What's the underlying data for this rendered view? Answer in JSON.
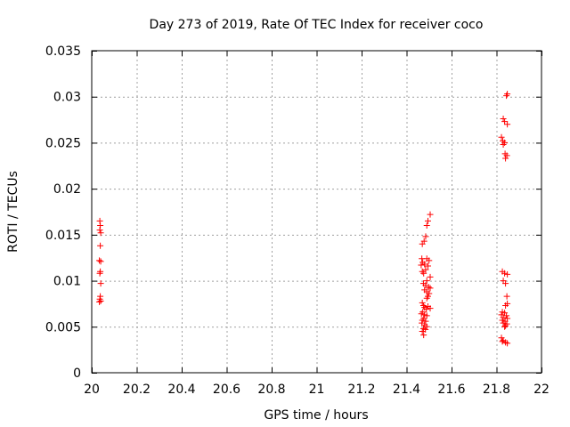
{
  "chart_data": {
    "type": "scatter",
    "title": "Day 273 of 2019, Rate Of TEC Index for receiver coco",
    "xlabel": "GPS time / hours",
    "ylabel": "ROTI / TECUs",
    "xlim": [
      20,
      22
    ],
    "ylim": [
      0,
      0.035
    ],
    "grid": true,
    "marker": "+",
    "color": "#ff0000",
    "xticks": [
      20,
      20.2,
      20.4,
      20.6,
      20.8,
      21,
      21.2,
      21.4,
      21.6,
      21.8,
      22
    ],
    "xtick_labels": [
      "20",
      "20.2",
      "20.4",
      "20.6",
      "20.8",
      "21",
      "21.2",
      "21.4",
      "21.6",
      "21.8",
      "22"
    ],
    "yticks": [
      0,
      0.005,
      0.01,
      0.015,
      0.02,
      0.025,
      0.03,
      0.035
    ],
    "ytick_labels": [
      "0",
      "0.005",
      "0.01",
      "0.015",
      "0.02",
      "0.025",
      "0.03",
      "0.035"
    ],
    "points": [
      [
        20.036,
        0.0165
      ],
      [
        20.038,
        0.016
      ],
      [
        20.036,
        0.0155
      ],
      [
        20.04,
        0.0152
      ],
      [
        20.038,
        0.0138
      ],
      [
        20.034,
        0.0122
      ],
      [
        20.04,
        0.0121
      ],
      [
        20.038,
        0.011
      ],
      [
        20.036,
        0.0108
      ],
      [
        20.04,
        0.0097
      ],
      [
        20.038,
        0.0083
      ],
      [
        20.036,
        0.008
      ],
      [
        20.04,
        0.0078
      ],
      [
        20.034,
        0.0077
      ],
      [
        21.505,
        0.0172
      ],
      [
        21.495,
        0.0165
      ],
      [
        21.49,
        0.016
      ],
      [
        21.485,
        0.0148
      ],
      [
        21.478,
        0.0143
      ],
      [
        21.47,
        0.014
      ],
      [
        21.468,
        0.0124
      ],
      [
        21.49,
        0.0124
      ],
      [
        21.5,
        0.0122
      ],
      [
        21.472,
        0.012
      ],
      [
        21.465,
        0.0117
      ],
      [
        21.48,
        0.0118
      ],
      [
        21.495,
        0.0116
      ],
      [
        21.485,
        0.0112
      ],
      [
        21.47,
        0.011
      ],
      [
        21.476,
        0.0108
      ],
      [
        21.505,
        0.0104
      ],
      [
        21.49,
        0.01
      ],
      [
        21.475,
        0.0097
      ],
      [
        21.485,
        0.0095
      ],
      [
        21.498,
        0.0093
      ],
      [
        21.505,
        0.0092
      ],
      [
        21.48,
        0.009
      ],
      [
        21.49,
        0.0088
      ],
      [
        21.5,
        0.0086
      ],
      [
        21.495,
        0.0083
      ],
      [
        21.49,
        0.0081
      ],
      [
        21.47,
        0.0076
      ],
      [
        21.475,
        0.0073
      ],
      [
        21.48,
        0.0071
      ],
      [
        21.495,
        0.0072
      ],
      [
        21.505,
        0.007
      ],
      [
        21.488,
        0.0069
      ],
      [
        21.472,
        0.0066
      ],
      [
        21.466,
        0.0064
      ],
      [
        21.48,
        0.0063
      ],
      [
        21.49,
        0.0062
      ],
      [
        21.476,
        0.0059
      ],
      [
        21.47,
        0.0057
      ],
      [
        21.485,
        0.0056
      ],
      [
        21.468,
        0.0054
      ],
      [
        21.48,
        0.0052
      ],
      [
        21.49,
        0.005
      ],
      [
        21.475,
        0.0048
      ],
      [
        21.47,
        0.0045
      ],
      [
        21.484,
        0.0047
      ],
      [
        21.476,
        0.0041
      ],
      [
        21.848,
        0.0303
      ],
      [
        21.844,
        0.0301
      ],
      [
        21.83,
        0.0276
      ],
      [
        21.836,
        0.0273
      ],
      [
        21.848,
        0.027
      ],
      [
        21.822,
        0.0256
      ],
      [
        21.828,
        0.0252
      ],
      [
        21.836,
        0.025
      ],
      [
        21.83,
        0.0248
      ],
      [
        21.838,
        0.0238
      ],
      [
        21.846,
        0.0236
      ],
      [
        21.84,
        0.0233
      ],
      [
        21.826,
        0.011
      ],
      [
        21.836,
        0.0108
      ],
      [
        21.848,
        0.0107
      ],
      [
        21.83,
        0.01
      ],
      [
        21.84,
        0.0097
      ],
      [
        21.846,
        0.0083
      ],
      [
        21.848,
        0.0075
      ],
      [
        21.84,
        0.0073
      ],
      [
        21.826,
        0.0066
      ],
      [
        21.836,
        0.0065
      ],
      [
        21.822,
        0.0063
      ],
      [
        21.844,
        0.0062
      ],
      [
        21.83,
        0.006
      ],
      [
        21.848,
        0.0059
      ],
      [
        21.826,
        0.0057
      ],
      [
        21.838,
        0.0056
      ],
      [
        21.83,
        0.0054
      ],
      [
        21.846,
        0.0053
      ],
      [
        21.84,
        0.0051
      ],
      [
        21.836,
        0.005
      ],
      [
        21.822,
        0.0038
      ],
      [
        21.83,
        0.0035
      ],
      [
        21.84,
        0.0033
      ],
      [
        21.848,
        0.0032
      ],
      [
        21.826,
        0.0034
      ]
    ]
  }
}
